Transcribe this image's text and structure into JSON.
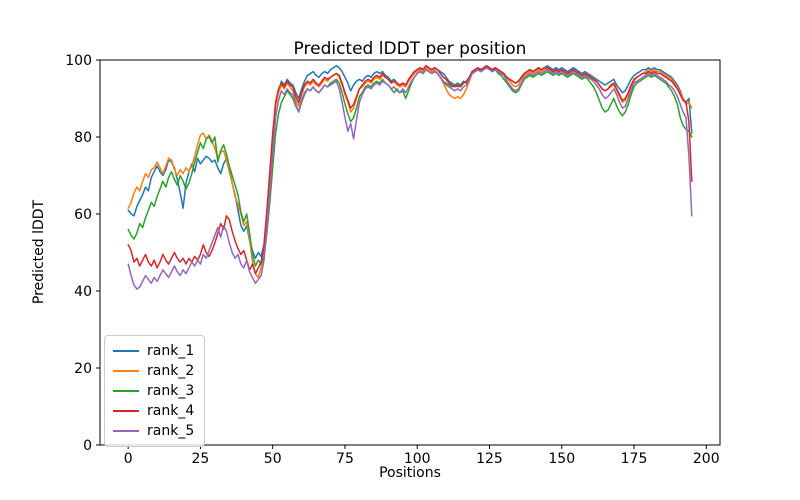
{
  "figure": {
    "background": "#ffffff"
  },
  "chart_data": {
    "type": "line",
    "title": "Predicted lDDT per position",
    "xlabel": "Positions",
    "ylabel": "Predicted lDDT",
    "xlim": [
      -9.75,
      204.75
    ],
    "ylim": [
      0,
      100
    ],
    "xticks": [
      0,
      25,
      50,
      75,
      100,
      125,
      150,
      175,
      200
    ],
    "yticks": [
      0,
      20,
      40,
      60,
      80,
      100
    ],
    "grid": false,
    "legend_position": "lower left",
    "x_start": 0,
    "x_step": 1,
    "series": [
      {
        "name": "rank_1",
        "color": "#1f77b4",
        "values": [
          61,
          60,
          59.5,
          62,
          63.5,
          65,
          67,
          66,
          69.5,
          71,
          72.5,
          71,
          70,
          71.5,
          74,
          73.5,
          72,
          69,
          65.5,
          61.5,
          68,
          71,
          73,
          71,
          74.5,
          73,
          74,
          75,
          74.5,
          73.5,
          74,
          72,
          70.5,
          73,
          74.5,
          72,
          68,
          65,
          61,
          57,
          55.5,
          57,
          53,
          50.5,
          48.5,
          50,
          49,
          52,
          60,
          70,
          80,
          88,
          92,
          94.5,
          93.5,
          95,
          94,
          93.5,
          91.5,
          90,
          92.5,
          94.5,
          96,
          96.5,
          97,
          96,
          95.5,
          96.5,
          97,
          96.5,
          97.5,
          98,
          98.5,
          98,
          97,
          95.5,
          94,
          92,
          93.5,
          94.5,
          95,
          94.5,
          95.5,
          96,
          95.5,
          96.5,
          97,
          96.5,
          97,
          96,
          95.5,
          94.5,
          95,
          94,
          93.5,
          94,
          93.5,
          94.5,
          96,
          97,
          97.5,
          98,
          97.5,
          98.5,
          98,
          97.5,
          98,
          97.5,
          97,
          96.5,
          95.5,
          94.5,
          94,
          93.5,
          94,
          93.5,
          94.5,
          94,
          95.5,
          97,
          97.5,
          98,
          97.5,
          98,
          98.5,
          98,
          97.5,
          98,
          97.5,
          97,
          96.5,
          95.5,
          95,
          94.5,
          94,
          94.5,
          95.5,
          96.5,
          97,
          97.5,
          97,
          97.5,
          98,
          97.5,
          98,
          98.5,
          98,
          97.5,
          98,
          97.5,
          98,
          97.5,
          97,
          97.5,
          98,
          97.5,
          97,
          96.5,
          97,
          96.5,
          96,
          95.5,
          95,
          94.5,
          94,
          93.5,
          94,
          94.5,
          95,
          93.5,
          92.5,
          91.5,
          92,
          93.5,
          95,
          96,
          96.5,
          97,
          97.5,
          97.5,
          98,
          97.5,
          98,
          97.5,
          97.5,
          97,
          96.5,
          96,
          95.5,
          94.5,
          93.5,
          92,
          90,
          89,
          90,
          81
        ]
      },
      {
        "name": "rank_2",
        "color": "#ff7f0e",
        "values": [
          61.5,
          63,
          65.5,
          67,
          66,
          68.5,
          70.5,
          69.5,
          71.5,
          72,
          73.5,
          72,
          70.5,
          72.5,
          74.5,
          74,
          71.5,
          70,
          71.5,
          70.5,
          72,
          71,
          72.5,
          75,
          78,
          80.5,
          81,
          79.5,
          80.5,
          79,
          77,
          74.5,
          76,
          76.5,
          74,
          71,
          68,
          64.5,
          62.5,
          60,
          57,
          58,
          53.5,
          47.5,
          44.5,
          43.5,
          46,
          51,
          59,
          69,
          79,
          88,
          91.5,
          93.5,
          92.5,
          94,
          93,
          92,
          89.5,
          88,
          91,
          93,
          94,
          93.5,
          94.5,
          93.5,
          93,
          94,
          95,
          94.5,
          95.5,
          96,
          96.5,
          95.5,
          93.5,
          91,
          89,
          86.5,
          87.5,
          90,
          92.5,
          93,
          94,
          94.5,
          94,
          95,
          95.5,
          95,
          96,
          95.5,
          95,
          94,
          94.5,
          93.5,
          93,
          93.5,
          93,
          94.5,
          95.5,
          96.5,
          97,
          97.5,
          97,
          98,
          97.5,
          97,
          97.5,
          96.5,
          95.5,
          94,
          92.5,
          91,
          90.5,
          90,
          90.5,
          90,
          91,
          92.5,
          94.5,
          96.5,
          97,
          97.5,
          97,
          97.5,
          98,
          97.5,
          97,
          97.5,
          97,
          96.5,
          96,
          95,
          94.5,
          93.5,
          93,
          93.5,
          95,
          96,
          96.5,
          97,
          96.5,
          97,
          97.5,
          97,
          97.5,
          98,
          97.5,
          97,
          97.5,
          97,
          97.5,
          97,
          96.5,
          97,
          97.5,
          97,
          96.5,
          96,
          96.5,
          96,
          95.5,
          95,
          94.5,
          93.5,
          92.5,
          92,
          92.5,
          93,
          93.5,
          92,
          90.5,
          89,
          89.5,
          91,
          93,
          94.5,
          95.5,
          96,
          96.5,
          97,
          97.5,
          97,
          97.5,
          97,
          97,
          96.5,
          96,
          95.5,
          95,
          94,
          93,
          91.5,
          90,
          88.5,
          89,
          87.5
        ]
      },
      {
        "name": "rank_3",
        "color": "#2ca02c",
        "values": [
          56,
          54.5,
          53.5,
          55,
          57.5,
          56.5,
          59,
          61,
          63,
          62,
          64.5,
          66.5,
          68.5,
          67,
          69.5,
          71,
          69,
          67.5,
          70,
          68.5,
          66.5,
          68,
          70.5,
          73.5,
          76,
          78.5,
          77,
          79.5,
          80,
          78.5,
          80,
          73.5,
          76.5,
          78,
          75.5,
          72.5,
          70,
          67.5,
          65,
          60.5,
          58,
          60,
          55,
          49.5,
          46.5,
          48,
          47,
          49,
          55,
          63,
          72,
          81,
          86,
          89,
          90.5,
          92,
          91,
          90,
          88,
          86.5,
          89,
          91,
          92.5,
          92,
          93,
          92,
          91.5,
          92.5,
          93.5,
          93,
          94,
          94.5,
          95,
          94,
          91.5,
          88.5,
          86,
          84,
          85,
          87.5,
          90.5,
          91.5,
          93,
          93.5,
          93,
          94,
          94.5,
          94,
          95,
          94,
          93.5,
          92.5,
          91.5,
          92.5,
          91.5,
          92,
          90,
          92,
          94,
          95.5,
          96.5,
          97,
          96.5,
          97.5,
          97,
          96.5,
          97,
          96.5,
          95.5,
          94.5,
          94,
          93.5,
          93,
          93.5,
          93,
          93.5,
          94,
          94.5,
          95.5,
          96.5,
          97,
          97.5,
          97,
          97.5,
          98,
          97.5,
          97,
          97.5,
          96.5,
          96,
          95,
          94,
          93,
          92,
          91.5,
          92,
          93.5,
          95,
          95.5,
          96,
          95.5,
          96,
          96.5,
          96,
          96.5,
          97,
          96.5,
          96,
          96.5,
          96,
          96.5,
          96,
          95.5,
          96,
          96.5,
          96,
          95.5,
          95,
          95.5,
          95,
          94,
          93,
          91.5,
          89.5,
          87.5,
          86.5,
          87,
          88.5,
          90,
          88,
          86.5,
          85.5,
          86.5,
          88.5,
          91,
          93,
          94,
          94.5,
          95,
          95.5,
          96,
          95.5,
          96,
          95.5,
          95,
          94.5,
          94,
          93,
          92,
          90.5,
          88.5,
          85,
          83,
          82,
          81.5,
          80
        ]
      },
      {
        "name": "rank_4",
        "color": "#d62728",
        "values": [
          52,
          50.5,
          47.5,
          48.5,
          46.5,
          48,
          49.5,
          47.5,
          46.5,
          48,
          46,
          47.5,
          49.5,
          48,
          47,
          48.5,
          50,
          48.5,
          47.5,
          48.5,
          47,
          48.5,
          47.5,
          49,
          48,
          49.5,
          52,
          50,
          49,
          50.5,
          52.5,
          55,
          57.5,
          56,
          59.5,
          58.5,
          55.5,
          53,
          51,
          49.5,
          50.5,
          48,
          45.5,
          47,
          44.5,
          46,
          47.5,
          52,
          61,
          71,
          81,
          89,
          92.5,
          94,
          93,
          94.5,
          93.5,
          93,
          90.5,
          89,
          91.5,
          93.5,
          94.5,
          94,
          95,
          94,
          93.5,
          94.5,
          95.5,
          95,
          95.5,
          96,
          96.5,
          96,
          94,
          91.5,
          89.5,
          87.5,
          88.5,
          90.5,
          92.5,
          93.5,
          94.5,
          95,
          94.5,
          95.5,
          96,
          95.5,
          96.5,
          95.5,
          95,
          94,
          94.5,
          94,
          93.5,
          94,
          93.5,
          95,
          96,
          97,
          97.5,
          98,
          97.5,
          98.5,
          98,
          97.5,
          98,
          97.5,
          96.5,
          95.5,
          95,
          94,
          93.5,
          93,
          93.5,
          93,
          94,
          94.5,
          95.5,
          97,
          97.5,
          98,
          97.5,
          98,
          98.5,
          98,
          97.5,
          98,
          97.5,
          97,
          96.5,
          95.5,
          95,
          94.5,
          94,
          94.5,
          95.5,
          96.5,
          97,
          97.5,
          97,
          97.5,
          98,
          97.5,
          98,
          98,
          97.5,
          97,
          97.5,
          97,
          97.5,
          97,
          96.5,
          97,
          97.5,
          97,
          96.5,
          96,
          96.5,
          96,
          95.5,
          95,
          94.5,
          93.5,
          92.5,
          92,
          92.5,
          93.5,
          94,
          92.5,
          91,
          89.5,
          90,
          91.5,
          93.5,
          95,
          95.5,
          96,
          96.5,
          96.5,
          97,
          96.5,
          97,
          96.5,
          96.5,
          96,
          95.5,
          95,
          94.5,
          93.5,
          92.5,
          91,
          89.5,
          89,
          84,
          68.5
        ]
      },
      {
        "name": "rank_5",
        "color": "#9467bd",
        "values": [
          47,
          44,
          41.5,
          40.5,
          41,
          42.5,
          44,
          43,
          42,
          43.5,
          42.5,
          44,
          45.5,
          44.5,
          43.5,
          45,
          46.5,
          45,
          44,
          45.5,
          44.5,
          46,
          47.5,
          46.5,
          48,
          47,
          49.5,
          48.5,
          50.5,
          52.5,
          54.5,
          56.5,
          54,
          57,
          55.5,
          52.5,
          50,
          48.5,
          49.5,
          47,
          46,
          48,
          45,
          43.5,
          42,
          43,
          44,
          48,
          56,
          66,
          76,
          85,
          89.5,
          92,
          91,
          92.5,
          91.5,
          91,
          88.5,
          86.5,
          89.5,
          91.5,
          92.5,
          92,
          93,
          92,
          91.5,
          92.5,
          93.5,
          93,
          93.5,
          94,
          94.5,
          92.5,
          89,
          85,
          81.5,
          83.5,
          79.5,
          84.5,
          89,
          91,
          92.5,
          93,
          92.5,
          93.5,
          94,
          93.5,
          94.5,
          94,
          93.5,
          92.5,
          93,
          92,
          91.5,
          92.5,
          91.5,
          93,
          94.5,
          95.5,
          96.5,
          97,
          96.5,
          97.5,
          97,
          96.5,
          97,
          96.5,
          95.5,
          94.5,
          93.5,
          93,
          92.5,
          92,
          92.5,
          92,
          93,
          93.5,
          95,
          96.5,
          97,
          97.5,
          97,
          97.5,
          98,
          97.5,
          97,
          97.5,
          97,
          96.5,
          96,
          94.5,
          93.5,
          92.5,
          92,
          92.5,
          94,
          95.5,
          96,
          96.5,
          96,
          96.5,
          97,
          96.5,
          97,
          97.5,
          97,
          96.5,
          97,
          96.5,
          97,
          96.5,
          96,
          96.5,
          97,
          96.5,
          96,
          95.5,
          96,
          95.5,
          95,
          94.5,
          93.5,
          92.5,
          91,
          90,
          90.5,
          91.5,
          92.5,
          91,
          89,
          87.5,
          88,
          90,
          92,
          94,
          94.5,
          95,
          95.5,
          96,
          96.5,
          96,
          96.5,
          96,
          95.5,
          95,
          94.5,
          93.5,
          93,
          92,
          90.5,
          88.5,
          86.5,
          85,
          75,
          59.5
        ]
      }
    ]
  }
}
